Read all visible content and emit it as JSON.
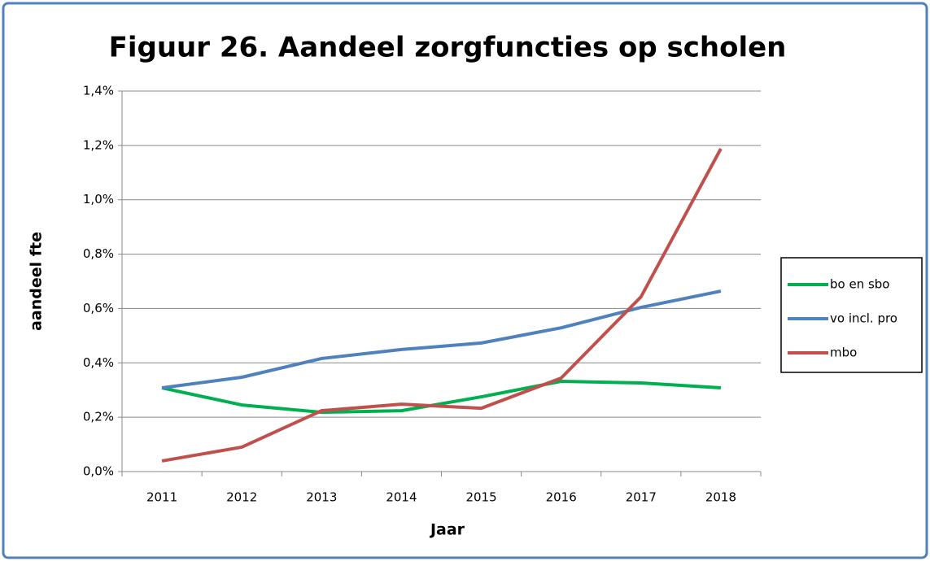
{
  "chart_data": {
    "type": "line",
    "title": "Figuur 26. Aandeel zorgfuncties op scholen",
    "x_label": "Jaar",
    "y_label": "aandeel fte",
    "categories": [
      "2011",
      "2012",
      "2013",
      "2014",
      "2015",
      "2016",
      "2017",
      "2018"
    ],
    "series": [
      {
        "name": "bo en sbo",
        "color": "#00b050",
        "values": [
          0.308,
          0.245,
          0.218,
          0.224,
          0.275,
          0.332,
          0.326,
          0.308
        ]
      },
      {
        "name": "vo incl. pro",
        "color": "#4f81bd",
        "values": [
          0.308,
          0.347,
          0.416,
          0.449,
          0.473,
          0.529,
          0.604,
          0.664
        ]
      },
      {
        "name": "mbo",
        "color": "#c0504d",
        "values": [
          0.039,
          0.09,
          0.224,
          0.248,
          0.233,
          0.344,
          0.643,
          1.188
        ]
      }
    ],
    "ylim": [
      0,
      1.4
    ],
    "yticks": [
      {
        "value": 0,
        "label": "0,0%"
      },
      {
        "value": 0.2,
        "label": "0,2%"
      },
      {
        "value": 0.4,
        "label": "0,4%"
      },
      {
        "value": 0.6,
        "label": "0,6%"
      },
      {
        "value": 0.8,
        "label": "0,8%"
      },
      {
        "value": 1.0,
        "label": "1,0%"
      },
      {
        "value": 1.2,
        "label": "1,2%"
      },
      {
        "value": 1.4,
        "label": "1,4%"
      }
    ],
    "grid": true,
    "legend": "right"
  }
}
